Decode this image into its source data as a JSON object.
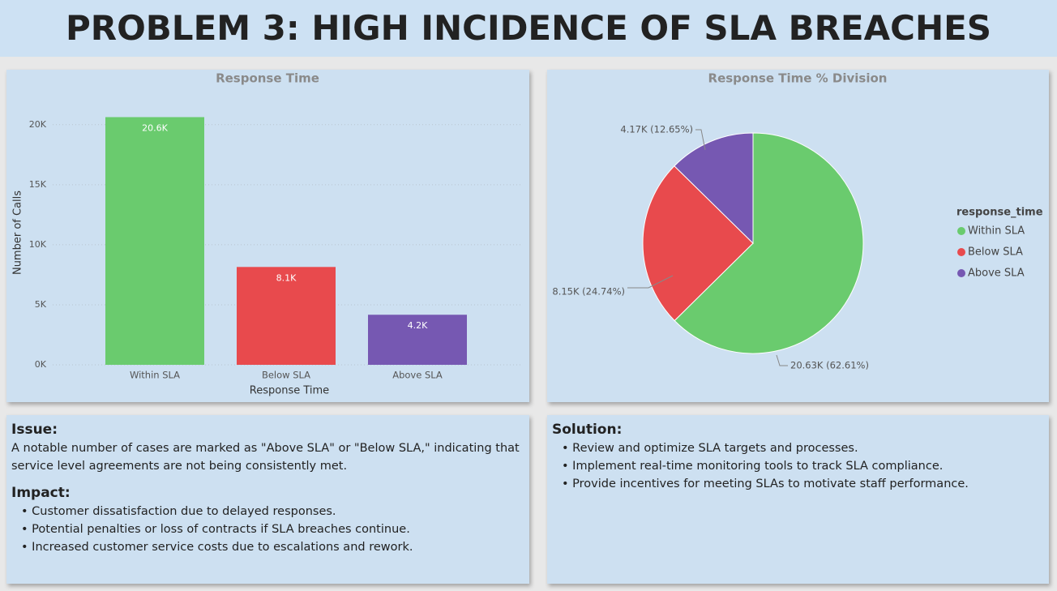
{
  "header": {
    "title": "PROBLEM 3: HIGH INCIDENCE OF SLA BREACHES"
  },
  "chart_data": [
    {
      "type": "bar",
      "title": "Response Time",
      "x_label": "Response Time",
      "y_label": "Number of Calls",
      "categories": [
        "Within SLA",
        "Below SLA",
        "Above SLA"
      ],
      "values": [
        20630,
        8150,
        4170
      ],
      "value_labels": [
        "20.6K",
        "8.1K",
        "4.2K"
      ],
      "colors": [
        "#6acb6e",
        "#e84a4d",
        "#7658b2"
      ],
      "ylim": [
        0,
        21000
      ],
      "yticks": [
        {
          "value": 0,
          "label": "0K"
        },
        {
          "value": 5000,
          "label": "5K"
        },
        {
          "value": 10000,
          "label": "10K"
        },
        {
          "value": 15000,
          "label": "15K"
        },
        {
          "value": 20000,
          "label": "20K"
        }
      ],
      "grid": true
    },
    {
      "type": "pie",
      "title": "Response Time % Division",
      "legend_title": "response_time",
      "legend": "right",
      "categories": [
        "Within SLA",
        "Below SLA",
        "Above SLA"
      ],
      "values": [
        20630,
        8150,
        4170
      ],
      "value_labels": [
        "20.63K (62.61%)",
        "8.15K (24.74%)",
        "4.17K (12.65%)"
      ],
      "colors": [
        "#6acb6e",
        "#e84a4d",
        "#7658b2"
      ]
    }
  ],
  "issue": {
    "title": "Issue:",
    "text": "A notable number of cases are marked as \"Above SLA\" or \"Below SLA,\" indicating that service level agreements are not being consistently met."
  },
  "impact": {
    "title": "Impact:",
    "items": [
      "Customer dissatisfaction due to delayed responses.",
      "Potential penalties or loss of contracts if SLA breaches continue.",
      "Increased customer service costs due to escalations and rework."
    ]
  },
  "solution": {
    "title": "Solution:",
    "items": [
      "Review and optimize SLA targets and processes.",
      "Implement real-time monitoring tools to track SLA compliance.",
      "Provide incentives for meeting SLAs to motivate staff performance."
    ]
  }
}
